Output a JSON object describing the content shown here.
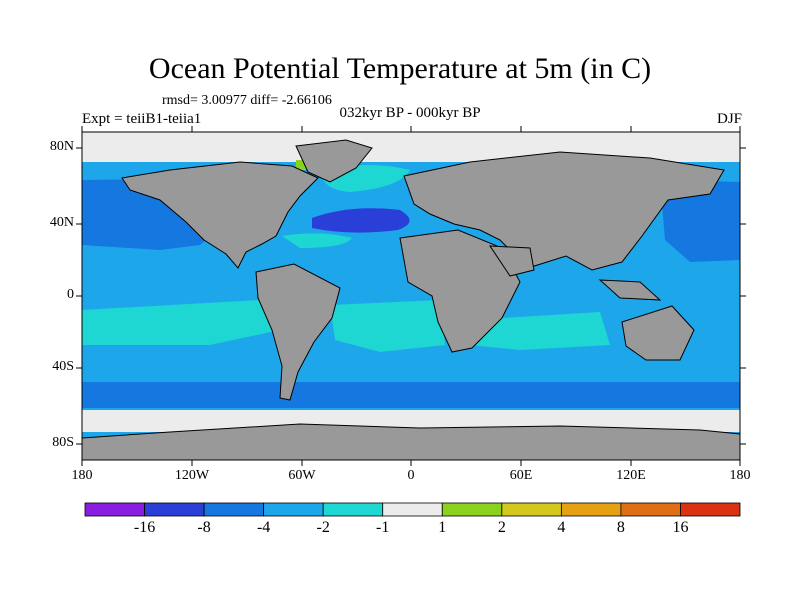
{
  "figure": {
    "title": "Ocean Potential Temperature at 5m (in C)",
    "stats": "rmsd= 3.00977  diff= -2.66106",
    "experiment": "Expt = teiiB1-teiia1",
    "period": "032kyr BP - 000kyr BP",
    "season": "DJF"
  },
  "axes": {
    "lat_labels": [
      "80N",
      "40N",
      "0",
      "40S",
      "80S"
    ],
    "lon_labels": [
      "180",
      "120W",
      "60W",
      "0",
      "60E",
      "120E",
      "180"
    ]
  },
  "colorbar": {
    "colors": [
      "#8a1ee0",
      "#2a3fd8",
      "#1478e0",
      "#1ea6ea",
      "#1ed6d2",
      "#ececec",
      "#8ad21e",
      "#d2c81e",
      "#e6a014",
      "#e06e14",
      "#dc3214"
    ],
    "labels": [
      "-16",
      "-8",
      "-4",
      "-2",
      "-1",
      "1",
      "2",
      "4",
      "8",
      "16"
    ]
  },
  "map_colors": {
    "land": "#999999",
    "ice": "#ececec",
    "ocean_base": "#1ea6ea",
    "ocean_cool": "#1478e0",
    "ocean_cold": "#2a3fd8",
    "ocean_mild": "#1ed6d2",
    "ocean_warm": "#8ad21e"
  }
}
